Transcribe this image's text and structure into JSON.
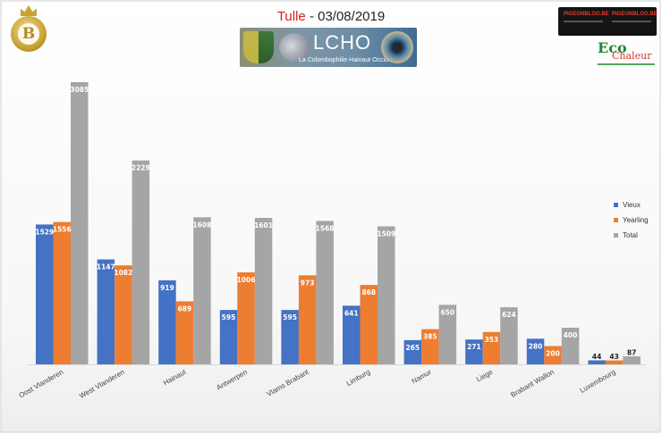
{
  "header": {
    "title_red": "Tulle",
    "title_rest": " - 03/08/2019",
    "banner_title": "LCHO",
    "banner_subtitle": "La Colombophilie Hainaut Occidental",
    "logo_letter": "B",
    "ad_left": "PIGEONBLOG.BE",
    "ad_right": "PIGEONBLOG.BE",
    "eco_word": "Eco",
    "eco_sub": "Chaleur"
  },
  "colors": {
    "Vieux": "#4472c4",
    "Yearling": "#ed7d31",
    "Total": "#a5a5a5"
  },
  "chart_data": {
    "type": "bar",
    "title": "Tulle - 03/08/2019",
    "xlabel": "",
    "ylabel": "",
    "ylim": [
      0,
      3300
    ],
    "grid": false,
    "legend_position": "right",
    "categories": [
      "Oost Vlanderen",
      "West Vlanderen",
      "Hainaut",
      "Antwerpen",
      "Vlams Brabant",
      "Limburg",
      "Namur",
      "Liege",
      "Brabant Wallon",
      "Luxembourg"
    ],
    "series": [
      {
        "name": "Vieux",
        "values": [
          1529,
          1147,
          919,
          595,
          595,
          641,
          265,
          271,
          280,
          44
        ]
      },
      {
        "name": "Yearling",
        "values": [
          1556,
          1082,
          689,
          1006,
          973,
          868,
          385,
          353,
          200,
          43
        ]
      },
      {
        "name": "Total",
        "values": [
          3085,
          2229,
          1608,
          1601,
          1568,
          1509,
          650,
          624,
          400,
          87
        ]
      }
    ]
  }
}
